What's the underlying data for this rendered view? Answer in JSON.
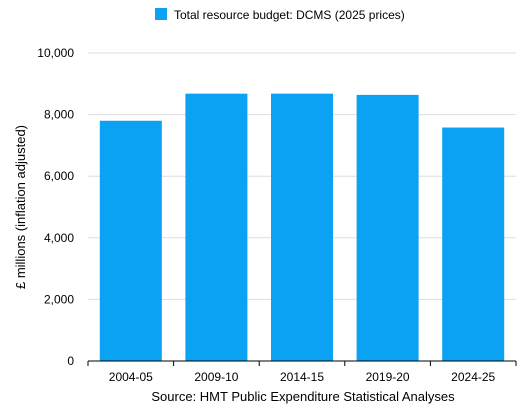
{
  "colors": {
    "bar": "#0BA2F4",
    "grid": "#DDDDDD",
    "axis": "#000000"
  },
  "chart_data": {
    "type": "bar",
    "categories": [
      "2004-05",
      "2009-10",
      "2014-15",
      "2019-20",
      "2024-25"
    ],
    "series": [
      {
        "name": "Total resource budget: DCMS (2025 prices)",
        "values": [
          7800,
          8680,
          8680,
          8640,
          7580
        ]
      }
    ],
    "ylabel": "£ millions (inflation adjusted)",
    "xlabel": "Source: HMT Public Expenditure Statistical Analyses",
    "ylim": [
      0,
      10000
    ],
    "yticks": [
      0,
      2000,
      4000,
      6000,
      8000,
      10000
    ],
    "ytick_labels": [
      "0",
      "2,000",
      "4,000",
      "6,000",
      "8,000",
      "10,000"
    ],
    "grid": true,
    "legend_position": "top"
  }
}
